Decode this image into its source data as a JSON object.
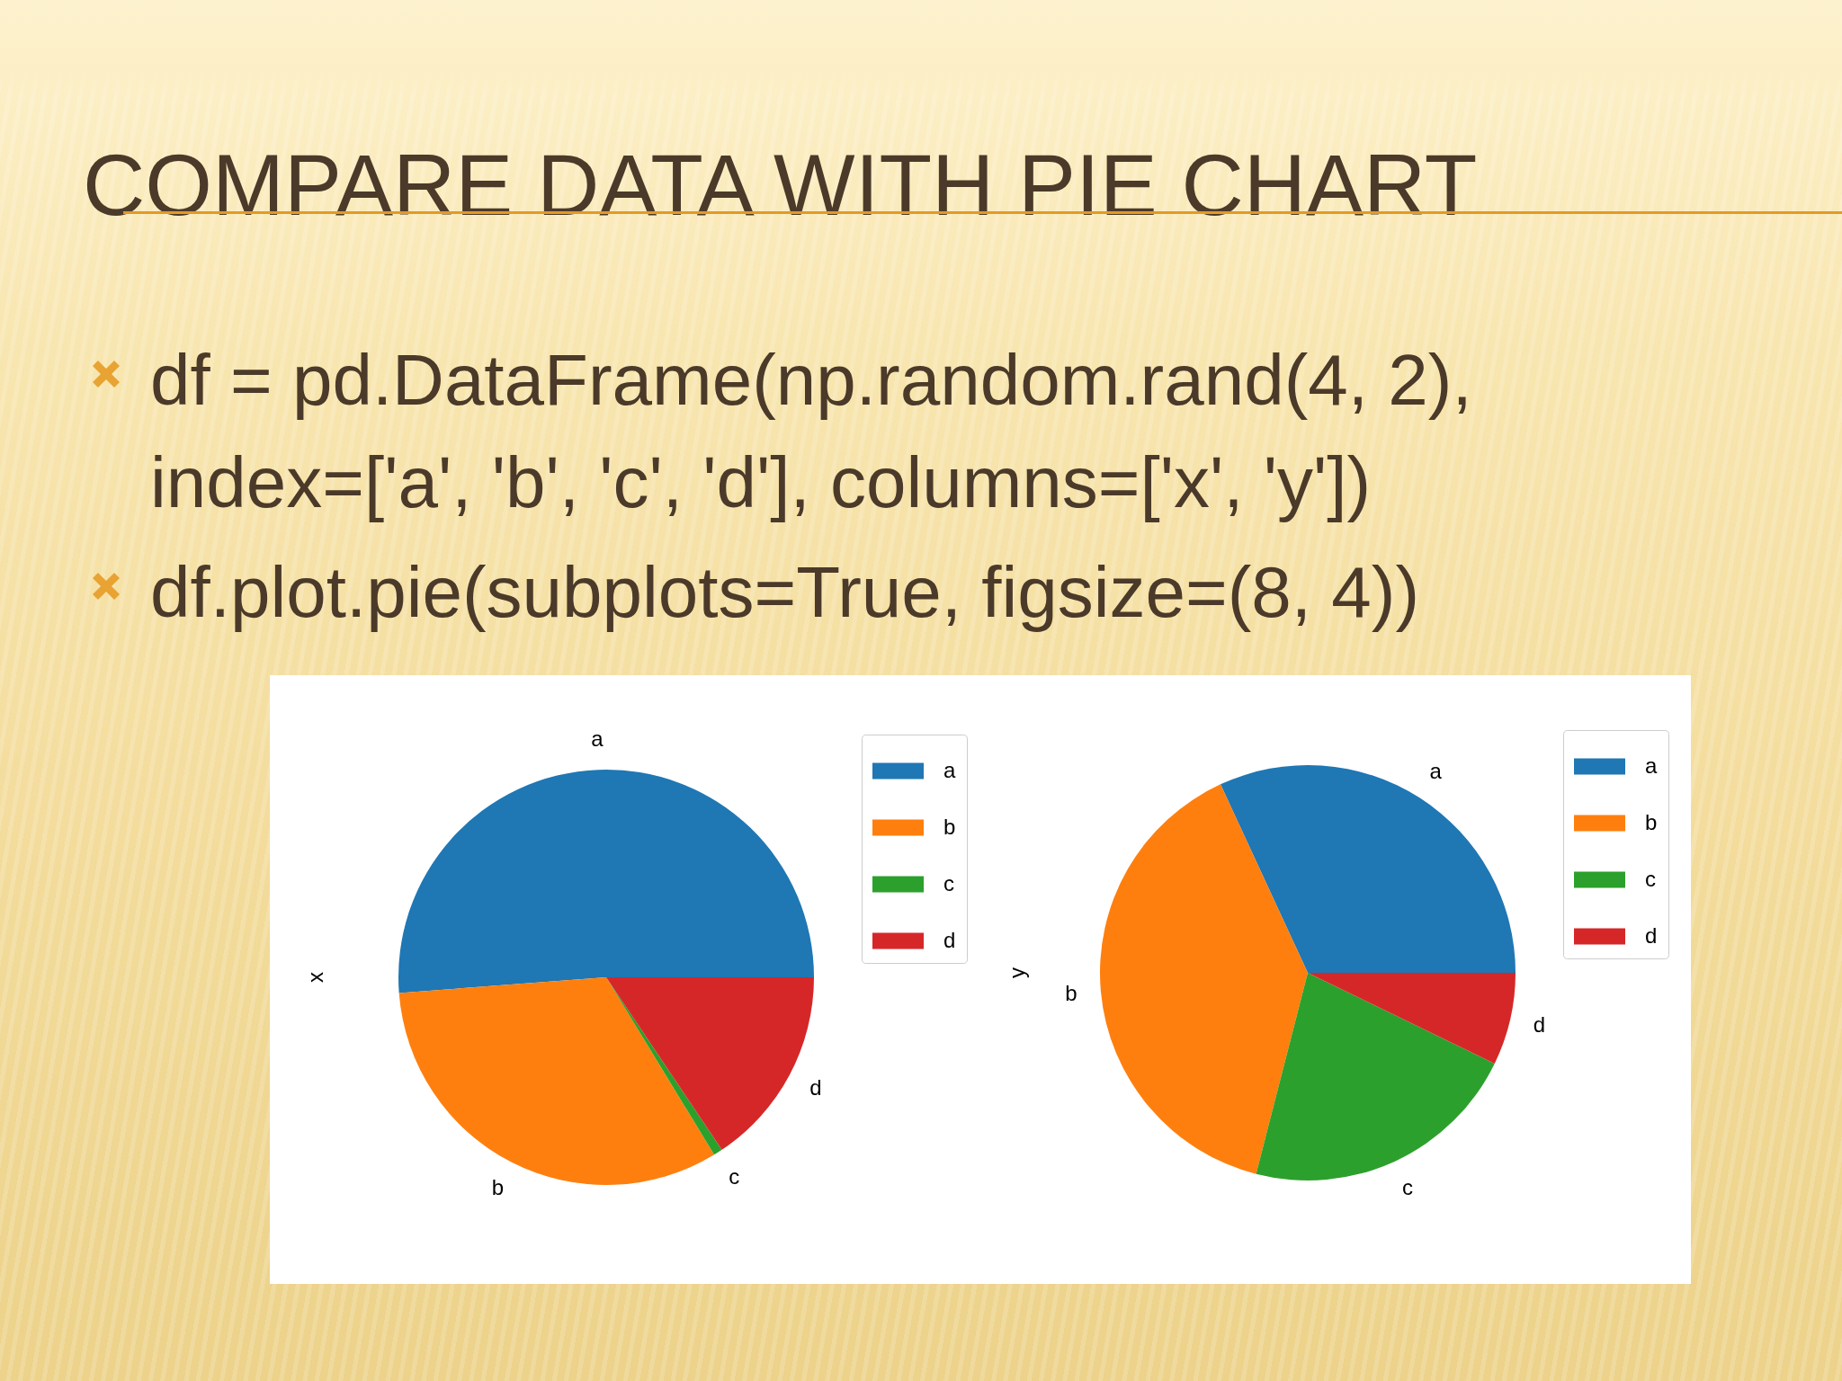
{
  "chart_data": [
    {
      "type": "other",
      "title": "COMPARE DATA WITH PIE CHART",
      "annotations": [
        "df = pd.DataFrame(np.random.rand(4, 2), index=['a', 'b', 'c', 'd'], columns=['x', 'y'])",
        "df.plot.pie(subplots=True, figsize=(8, 4))"
      ]
    },
    {
      "type": "pie",
      "ylabel": "x",
      "categories": [
        "a",
        "b",
        "c",
        "d"
      ],
      "values": [
        51.2,
        32.5,
        0.7,
        15.6
      ],
      "colors": [
        "#1f77b4",
        "#ff7f0e",
        "#2ca02c",
        "#d62728"
      ],
      "legend": "top right"
    },
    {
      "type": "pie",
      "ylabel": "y",
      "categories": [
        "a",
        "b",
        "c",
        "d"
      ],
      "values": [
        31.9,
        39.1,
        21.8,
        7.2
      ],
      "colors": [
        "#1f77b4",
        "#ff7f0e",
        "#2ca02c",
        "#d62728"
      ],
      "legend": "top right"
    }
  ]
}
